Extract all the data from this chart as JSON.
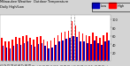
{
  "title": "Milwaukee Weather  Outdoor Temperature",
  "subtitle": "Daily High/Low",
  "background_color": "#d4d4d4",
  "plot_bg_color": "#ffffff",
  "color_high": "#ff0000",
  "color_low": "#0000bb",
  "ylim": [
    0,
    110
  ],
  "ytick_vals": [
    20,
    40,
    60,
    80,
    100
  ],
  "ytick_labels": [
    "20",
    "40",
    "60",
    "80",
    "100"
  ],
  "days": [
    "1",
    "2",
    "3",
    "4",
    "5",
    "6",
    "7",
    "8",
    "9",
    "10",
    "11",
    "12",
    "13",
    "14",
    "15",
    "16",
    "17",
    "18",
    "19",
    "20",
    "21",
    "22",
    "23",
    "24",
    "25",
    "26",
    "27",
    "28",
    "29",
    "30",
    "31"
  ],
  "highs": [
    55,
    48,
    48,
    52,
    58,
    55,
    60,
    62,
    56,
    52,
    58,
    60,
    52,
    48,
    50,
    56,
    62,
    68,
    70,
    72,
    95,
    85,
    70,
    65,
    62,
    60,
    68,
    60,
    56,
    62,
    68
  ],
  "lows": [
    36,
    33,
    30,
    36,
    40,
    38,
    43,
    46,
    38,
    34,
    40,
    43,
    36,
    30,
    33,
    38,
    46,
    50,
    53,
    56,
    60,
    58,
    48,
    46,
    43,
    40,
    50,
    42,
    38,
    46,
    50
  ],
  "dashed_lines": [
    19.5,
    20.5
  ],
  "legend_order": [
    "Low",
    "High"
  ]
}
